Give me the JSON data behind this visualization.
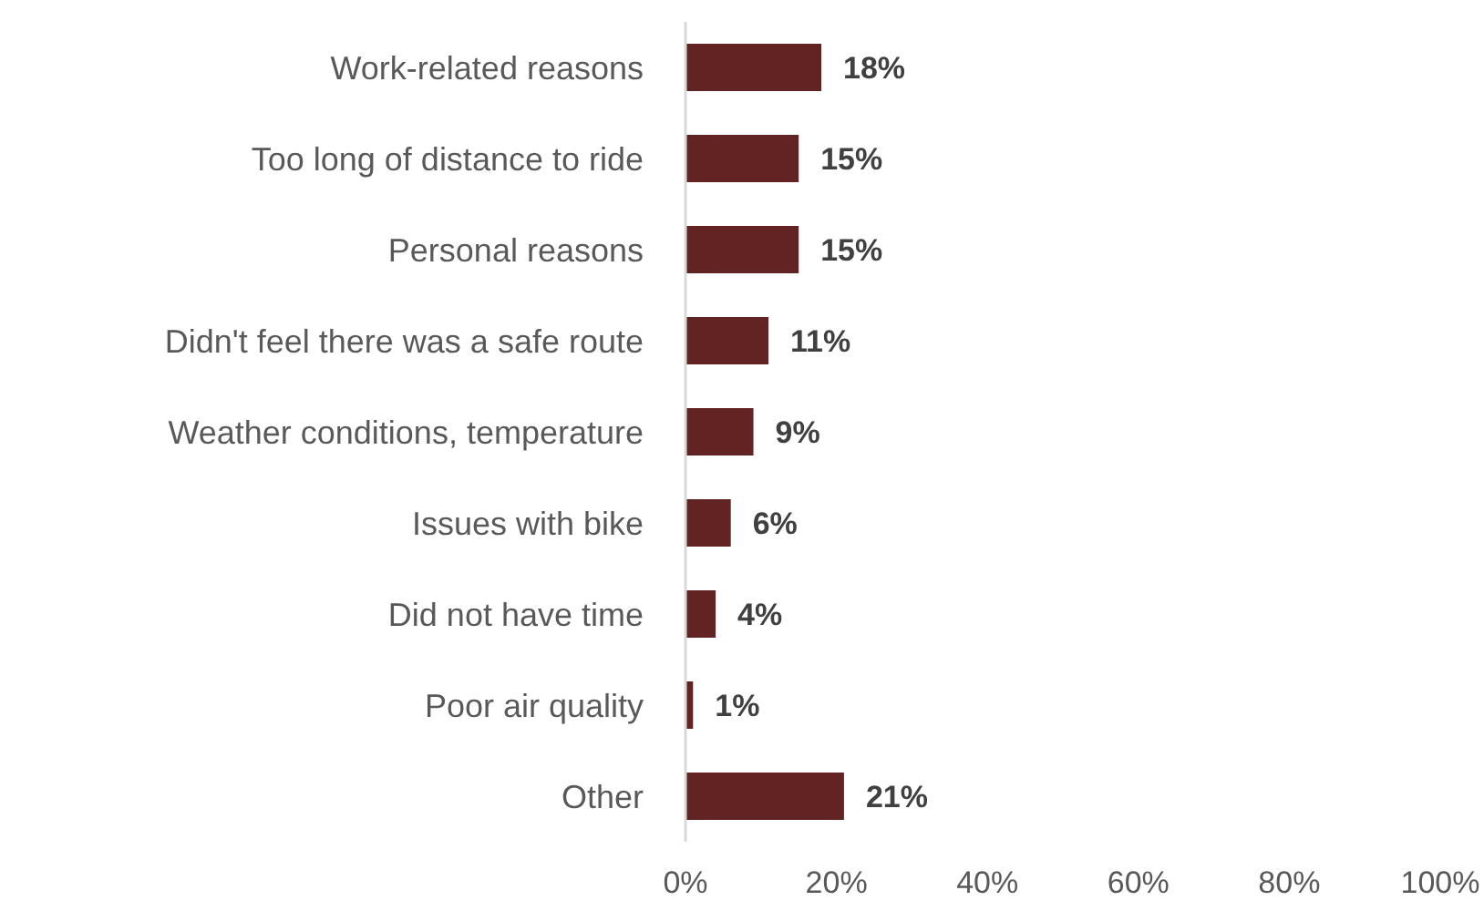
{
  "chart_data": {
    "type": "bar",
    "orientation": "horizontal",
    "categories": [
      "Work-related reasons",
      "Too long of distance to ride",
      "Personal reasons",
      "Didn't feel there was a safe route",
      "Weather conditions, temperature",
      "Issues with bike",
      "Did not have time",
      "Poor air quality",
      "Other"
    ],
    "values": [
      18,
      15,
      15,
      11,
      9,
      6,
      4,
      1,
      21
    ],
    "color": "#622423",
    "value_labels": [
      "18%",
      "15%",
      "15%",
      "11%",
      "9%",
      "6%",
      "4%",
      "1%",
      "21%"
    ],
    "xlim": [
      0,
      100
    ],
    "xticks": [
      {
        "value": 0,
        "label": "0%"
      },
      {
        "value": 20,
        "label": "20%"
      },
      {
        "value": 40,
        "label": "40%"
      },
      {
        "value": 60,
        "label": "60%"
      },
      {
        "value": 80,
        "label": "80%"
      },
      {
        "value": 100,
        "label": "100%"
      }
    ]
  }
}
